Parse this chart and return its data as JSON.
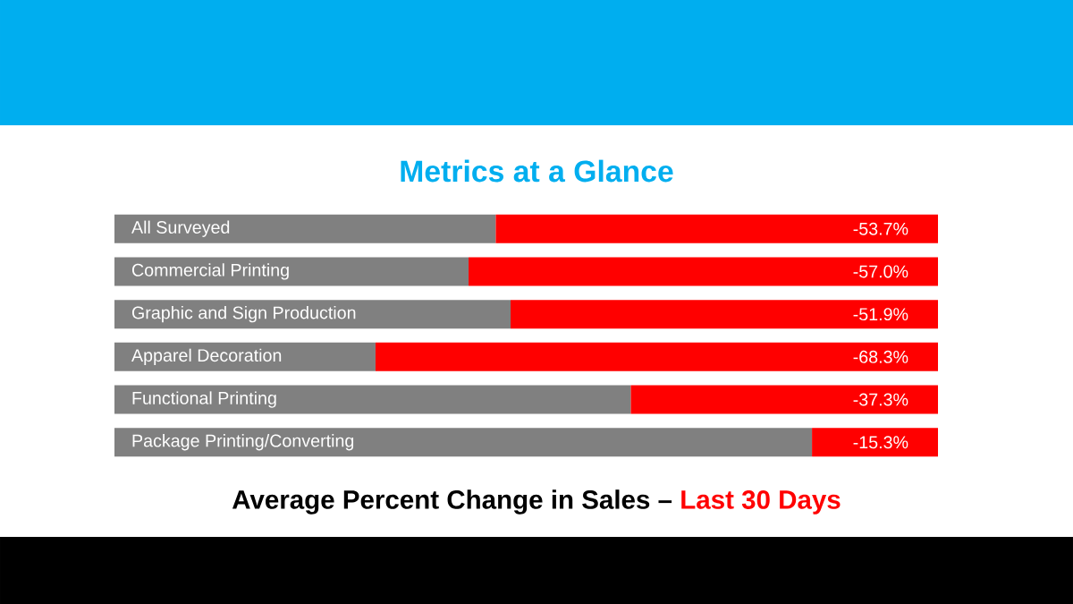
{
  "chart_data": {
    "type": "bar",
    "orientation": "horizontal",
    "stacked": true,
    "title": "Metrics at a Glance",
    "categories": [
      "All Surveyed",
      "Commercial Printing",
      "Graphic and Sign Production",
      "Apparel Decoration",
      "Functional Printing",
      "Package Printing/Converting"
    ],
    "series": [
      {
        "color": "#ff0000",
        "values": [
          -53.7,
          -57.0,
          -51.9,
          -68.3,
          -37.3,
          -15.3
        ],
        "value_labels": [
          "-53.7%",
          "-57.0%",
          "-51.9%",
          "-68.3%",
          "-37.3%",
          "-15.3%"
        ]
      },
      {
        "color": "#808080",
        "values": [
          -46.3,
          -43.0,
          -48.1,
          -31.7,
          -62.7,
          -84.7
        ]
      }
    ],
    "xlim": [
      -100,
      0
    ],
    "tick_labels": false,
    "xlabel": "Average Percent Change in Sales –",
    "annotations": [
      "Last 30 Days"
    ]
  }
}
